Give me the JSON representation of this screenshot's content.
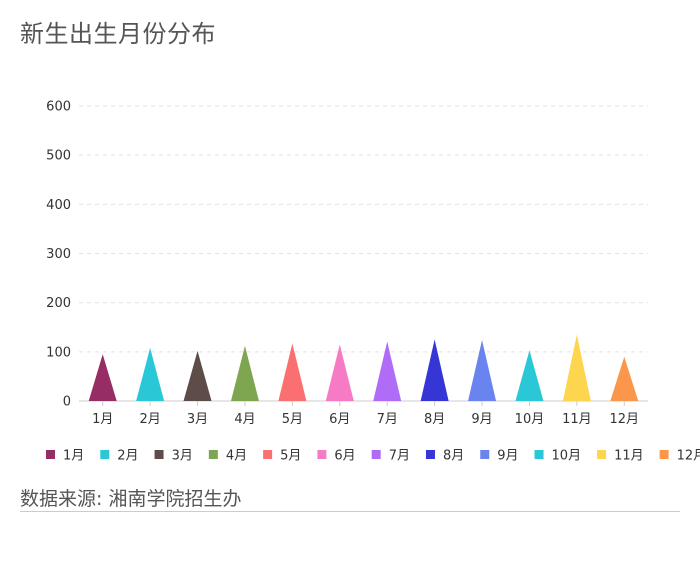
{
  "title": "新生出生月份分布",
  "source": "数据来源: 湘南学院招生办",
  "chart_data": {
    "type": "bar",
    "mark": "triangle",
    "categories": [
      "1月",
      "2月",
      "3月",
      "4月",
      "5月",
      "6月",
      "7月",
      "8月",
      "9月",
      "10月",
      "11月",
      "12月"
    ],
    "values": [
      95,
      108,
      102,
      112,
      117,
      115,
      121,
      125,
      124,
      103,
      135,
      90
    ],
    "colors": [
      "#962d64",
      "#2ac8d6",
      "#5d4c48",
      "#7ea650",
      "#fa7070",
      "#f77ac4",
      "#b06cf7",
      "#3636d6",
      "#6a84ef",
      "#2ac8d6",
      "#fdd54f",
      "#fa974b"
    ],
    "title": "新生出生月份分布",
    "xlabel": "",
    "ylabel": "",
    "ylim": [
      0,
      600
    ],
    "yticks": [
      0,
      100,
      200,
      300,
      400,
      500,
      600
    ],
    "grid": true,
    "legend_position": "bottom"
  }
}
